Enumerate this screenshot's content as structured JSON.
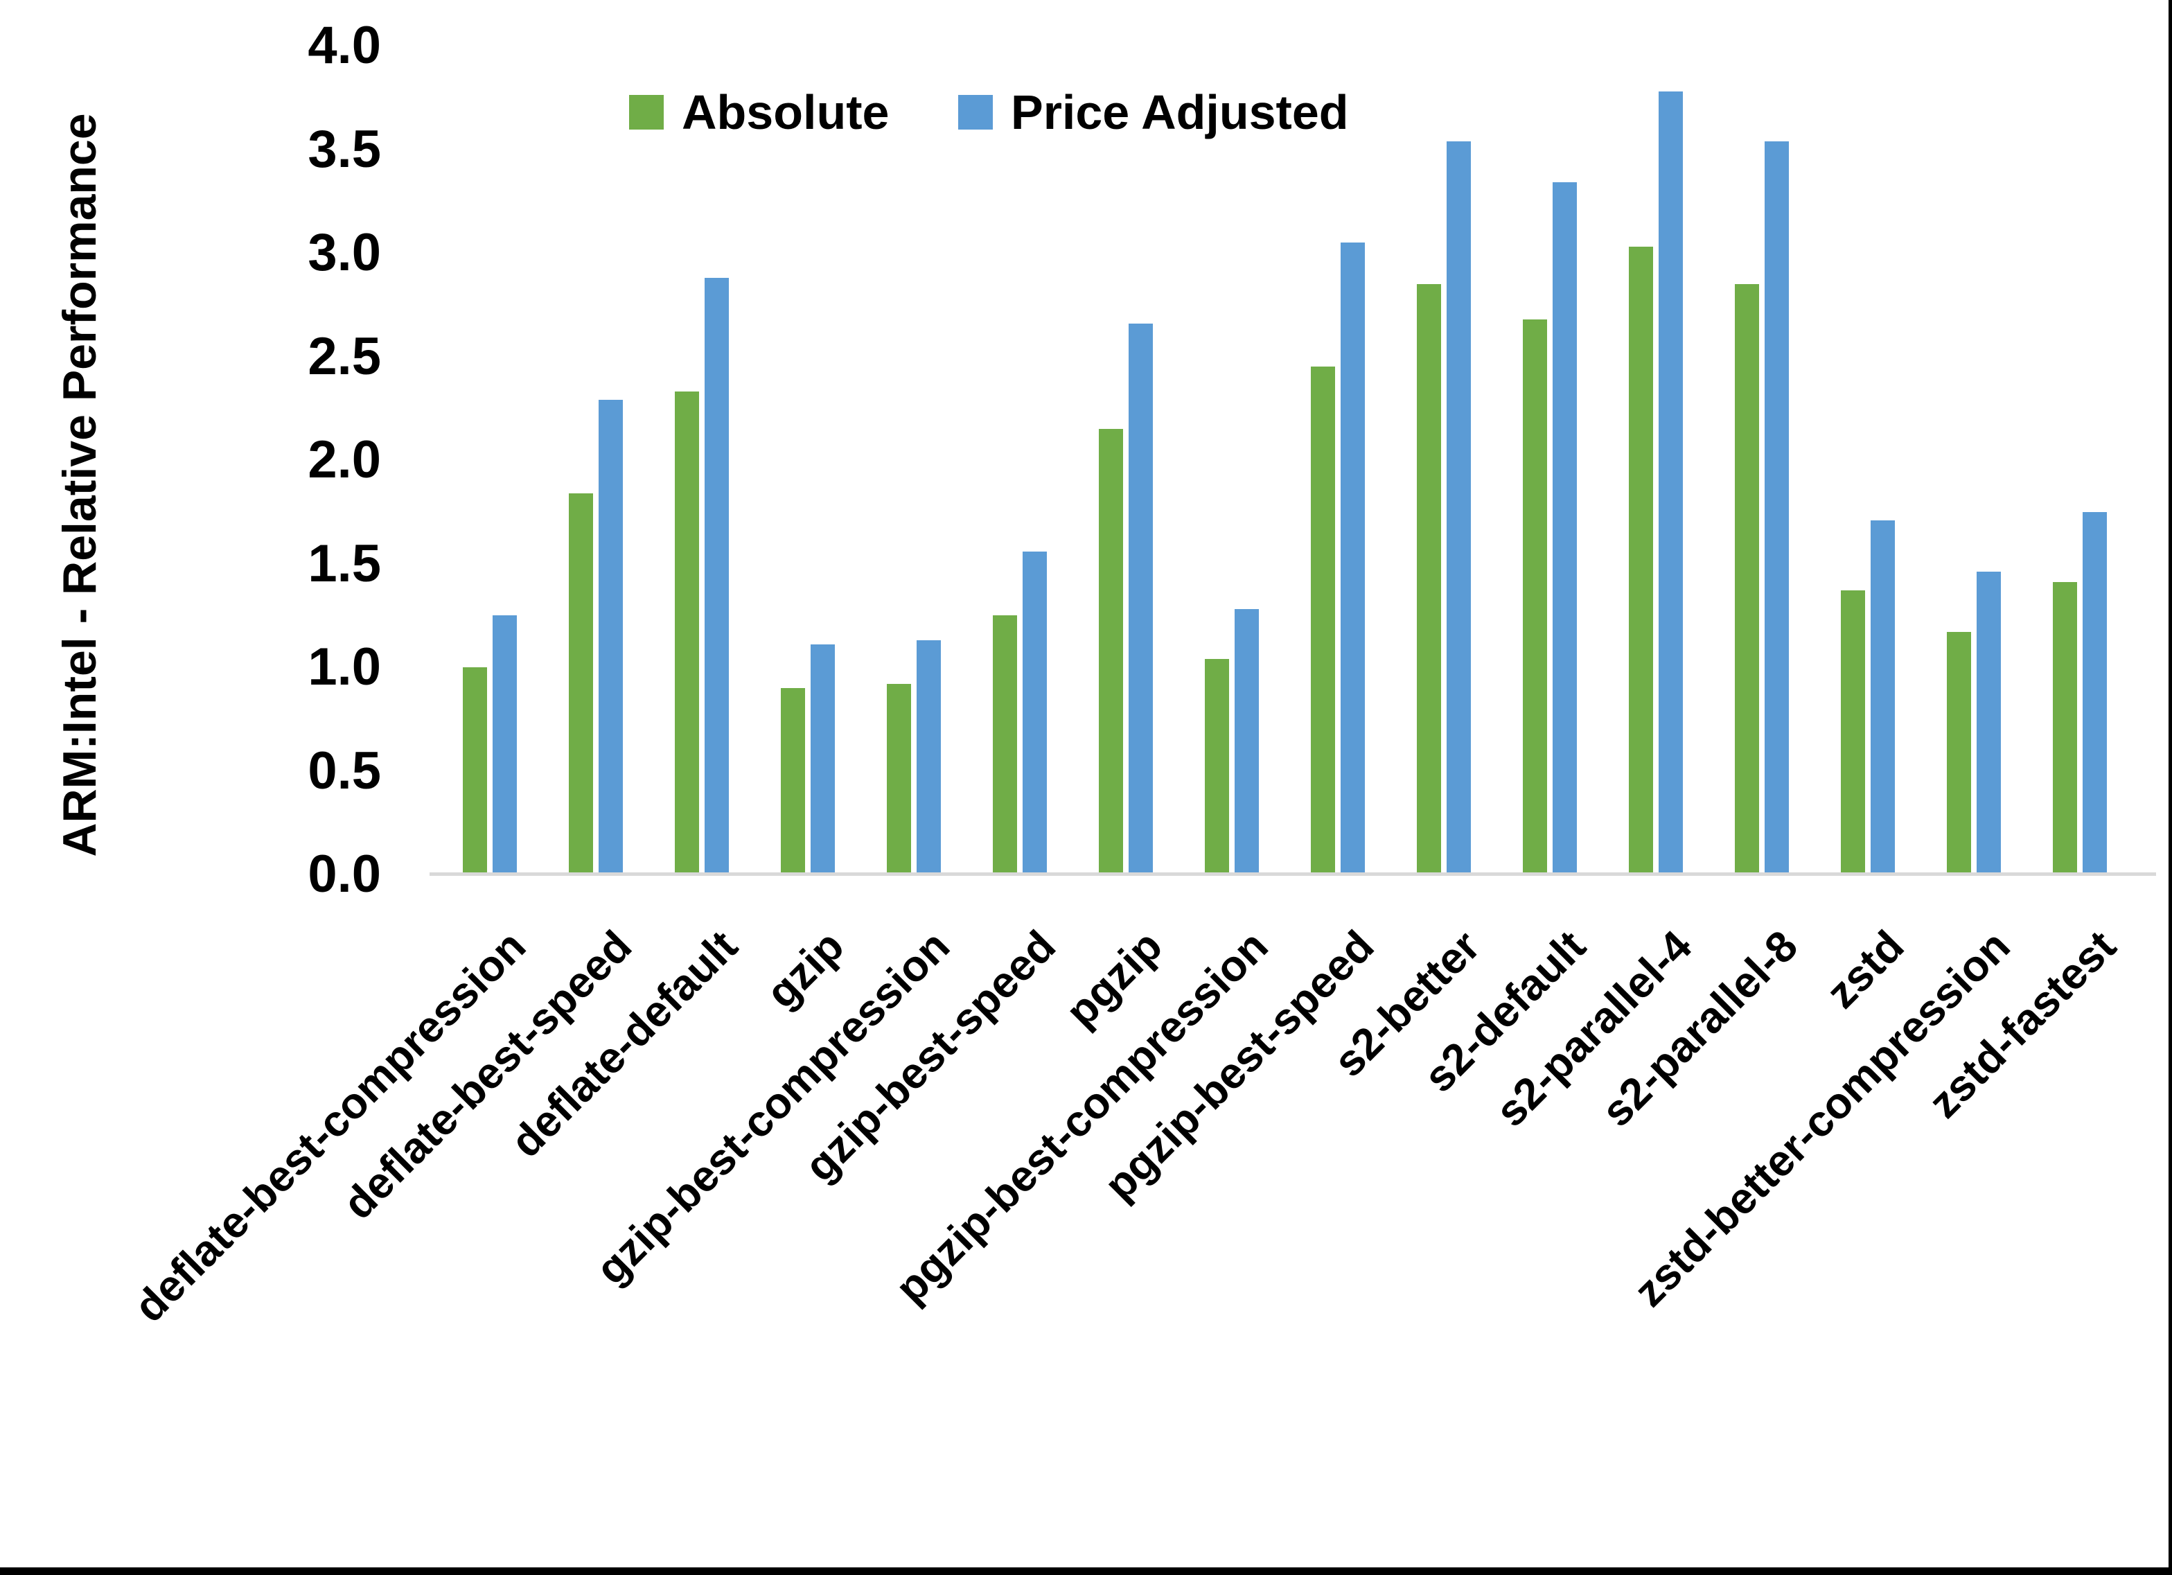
{
  "chart_data": {
    "type": "bar",
    "title": "",
    "ylabel": "ARM:Intel - Relative Performance",
    "xlabel": "",
    "ylim": [
      0.0,
      4.0
    ],
    "ytick_step": 0.5,
    "ytick_labels": [
      "0.0",
      "0.5",
      "1.0",
      "1.5",
      "2.0",
      "2.5",
      "3.0",
      "3.5",
      "4.0"
    ],
    "grid": false,
    "legend_position": "top-center",
    "categories": [
      "deflate-best-compression",
      "deflate-best-speed",
      "deflate-default",
      "gzip",
      "gzip-best-compression",
      "gzip-best-speed",
      "pgzip",
      "pgzip-best-compression",
      "pgzip-best-speed",
      "s2-better",
      "s2-default",
      "s2-parallel-4",
      "s2-parallel-8",
      "zstd",
      "zstd-better-compression",
      "zstd-fastest"
    ],
    "series": [
      {
        "name": "Absolute",
        "color": "#70AD47",
        "values": [
          1.0,
          1.84,
          2.33,
          0.9,
          0.92,
          1.25,
          2.15,
          1.04,
          2.45,
          2.85,
          2.68,
          3.03,
          2.85,
          1.37,
          1.17,
          1.41
        ]
      },
      {
        "name": "Price Adjusted",
        "color": "#5B9BD5",
        "values": [
          1.25,
          2.29,
          2.88,
          1.11,
          1.13,
          1.56,
          2.66,
          1.28,
          3.05,
          3.54,
          3.34,
          3.78,
          3.54,
          1.71,
          1.46,
          1.75
        ]
      }
    ],
    "colors": {
      "axis_line": "#D9D9D9",
      "text": "#000000",
      "background": "#FFFFFF"
    }
  }
}
